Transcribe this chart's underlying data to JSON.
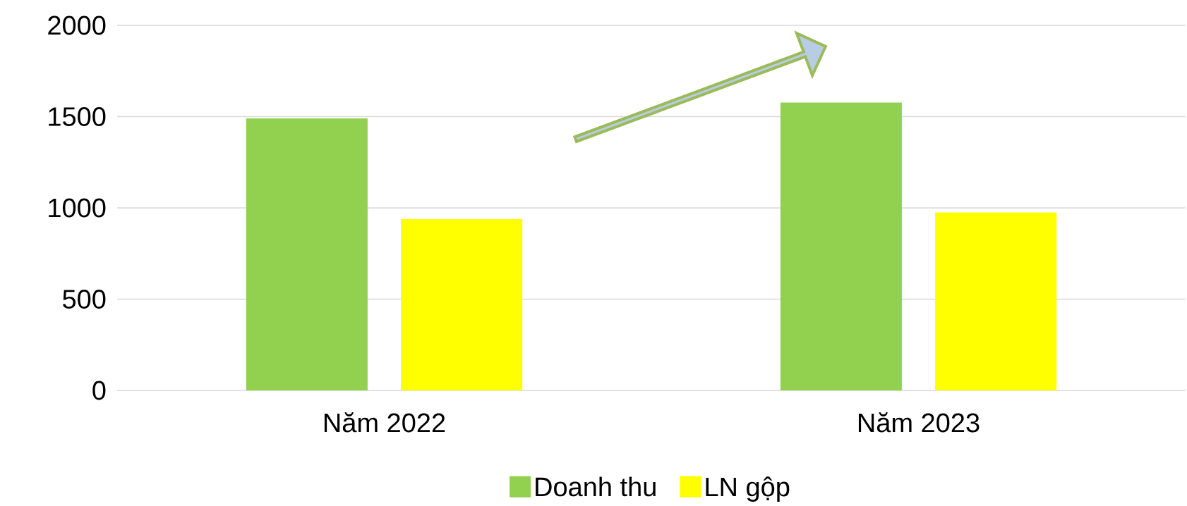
{
  "chart_data": {
    "type": "bar",
    "categories": [
      "Năm 2022",
      "Năm 2023"
    ],
    "series": [
      {
        "name": "Doanh thu",
        "color": "#92d050",
        "values": [
          1490,
          1577
        ]
      },
      {
        "name": "LN gộp",
        "color": "#ffff00",
        "values": [
          938,
          975
        ]
      }
    ],
    "ylim": [
      0,
      2000
    ],
    "yticks": [
      0,
      500,
      1000,
      1500,
      2000
    ],
    "grid": "y",
    "legend": "bottom"
  }
}
